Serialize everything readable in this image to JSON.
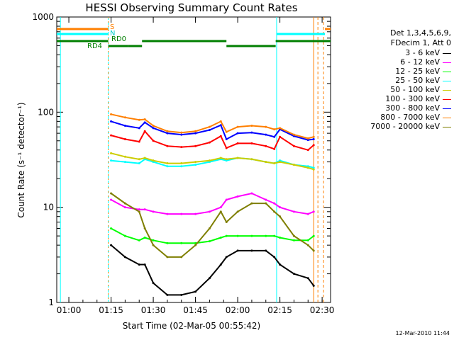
{
  "title": "HESSI Observing Summary Count Rates",
  "xlabel": "Start Time (02-Mar-05 00:55:42)",
  "ylabel": "Count Rate (s⁻¹ detector⁻¹)",
  "stamp": "12-Mar-2010 11:44",
  "legend_header": [
    "Det 1,3,4,5,6,9,",
    "FDecim 1, Att 0"
  ],
  "flags": {
    "s_label": "S",
    "n_label": "N",
    "rd0_label": "RD0",
    "rd4_label": "RD4"
  },
  "colors": {
    "s_flag": "#ff7f00",
    "n_flag": "#00ffff",
    "rd_flag": "#007f00"
  },
  "chart_data": {
    "type": "line",
    "ylog": true,
    "ylim": [
      1,
      1000
    ],
    "yticks": [
      1,
      10,
      100,
      1000
    ],
    "ytick_labels": [
      "1",
      "10",
      "100",
      "1000"
    ],
    "xlim": [
      "00:55:42",
      "02:33:00"
    ],
    "xtick_labels": [
      "01:00",
      "01:15",
      "01:30",
      "01:45",
      "02:00",
      "02:15",
      "02:30"
    ],
    "x": [
      "01:15",
      "01:20",
      "01:25",
      "01:27",
      "01:30",
      "01:35",
      "01:40",
      "01:45",
      "01:50",
      "01:54",
      "01:56",
      "02:00",
      "02:05",
      "02:10",
      "02:13",
      "02:15",
      "02:20",
      "02:25",
      "02:27"
    ],
    "series": [
      {
        "name": "3 - 6 keV",
        "color": "#000000",
        "values": [
          4,
          3,
          2.5,
          2.5,
          1.6,
          1.2,
          1.2,
          1.3,
          1.8,
          2.5,
          3,
          3.5,
          3.5,
          3.5,
          3,
          2.5,
          2,
          1.8,
          1.5
        ]
      },
      {
        "name": "6 - 12 keV",
        "color": "#ff00ff",
        "values": [
          12,
          10,
          9.5,
          9.5,
          9,
          8.5,
          8.5,
          8.5,
          9,
          10,
          12,
          13,
          14,
          12,
          11,
          10,
          9,
          8.5,
          9
        ]
      },
      {
        "name": "12 - 25 keV",
        "color": "#00ff00",
        "values": [
          6,
          5,
          4.5,
          4.8,
          4.5,
          4.2,
          4.2,
          4.2,
          4.4,
          4.8,
          5,
          5,
          5,
          5,
          5,
          4.8,
          4.5,
          4.5,
          5
        ]
      },
      {
        "name": "25 - 50 keV",
        "color": "#00ffff",
        "values": [
          31,
          30,
          29,
          32,
          30,
          27,
          27,
          28,
          30,
          32,
          31,
          33,
          32,
          30,
          29,
          31,
          28,
          27,
          26
        ]
      },
      {
        "name": "50 - 100 keV",
        "color": "#cccc00",
        "values": [
          37,
          34,
          32,
          33,
          31,
          29,
          29,
          30,
          31,
          33,
          32,
          33,
          32,
          30,
          29,
          30,
          28,
          26,
          25
        ]
      },
      {
        "name": "100 - 300 keV",
        "color": "#ff0000",
        "values": [
          57,
          52,
          49,
          63,
          50,
          44,
          43,
          44,
          48,
          56,
          42,
          47,
          47,
          44,
          41,
          55,
          44,
          40,
          45
        ]
      },
      {
        "name": "300 - 800 keV",
        "color": "#0000ff",
        "values": [
          80,
          72,
          68,
          78,
          68,
          60,
          58,
          60,
          65,
          73,
          52,
          60,
          61,
          58,
          55,
          66,
          56,
          51,
          52
        ]
      },
      {
        "name": "800 - 7000 keV",
        "color": "#ff7f00",
        "values": [
          95,
          88,
          83,
          84,
          72,
          63,
          61,
          63,
          70,
          80,
          62,
          70,
          72,
          70,
          66,
          68,
          58,
          53,
          55
        ]
      },
      {
        "name": "7000 - 20000 keV",
        "color": "#7f7f00",
        "values": [
          14,
          11,
          9,
          6,
          4,
          3,
          3,
          4,
          6,
          9,
          7,
          9,
          11,
          11,
          9,
          8,
          5,
          4,
          3.5
        ]
      }
    ]
  }
}
